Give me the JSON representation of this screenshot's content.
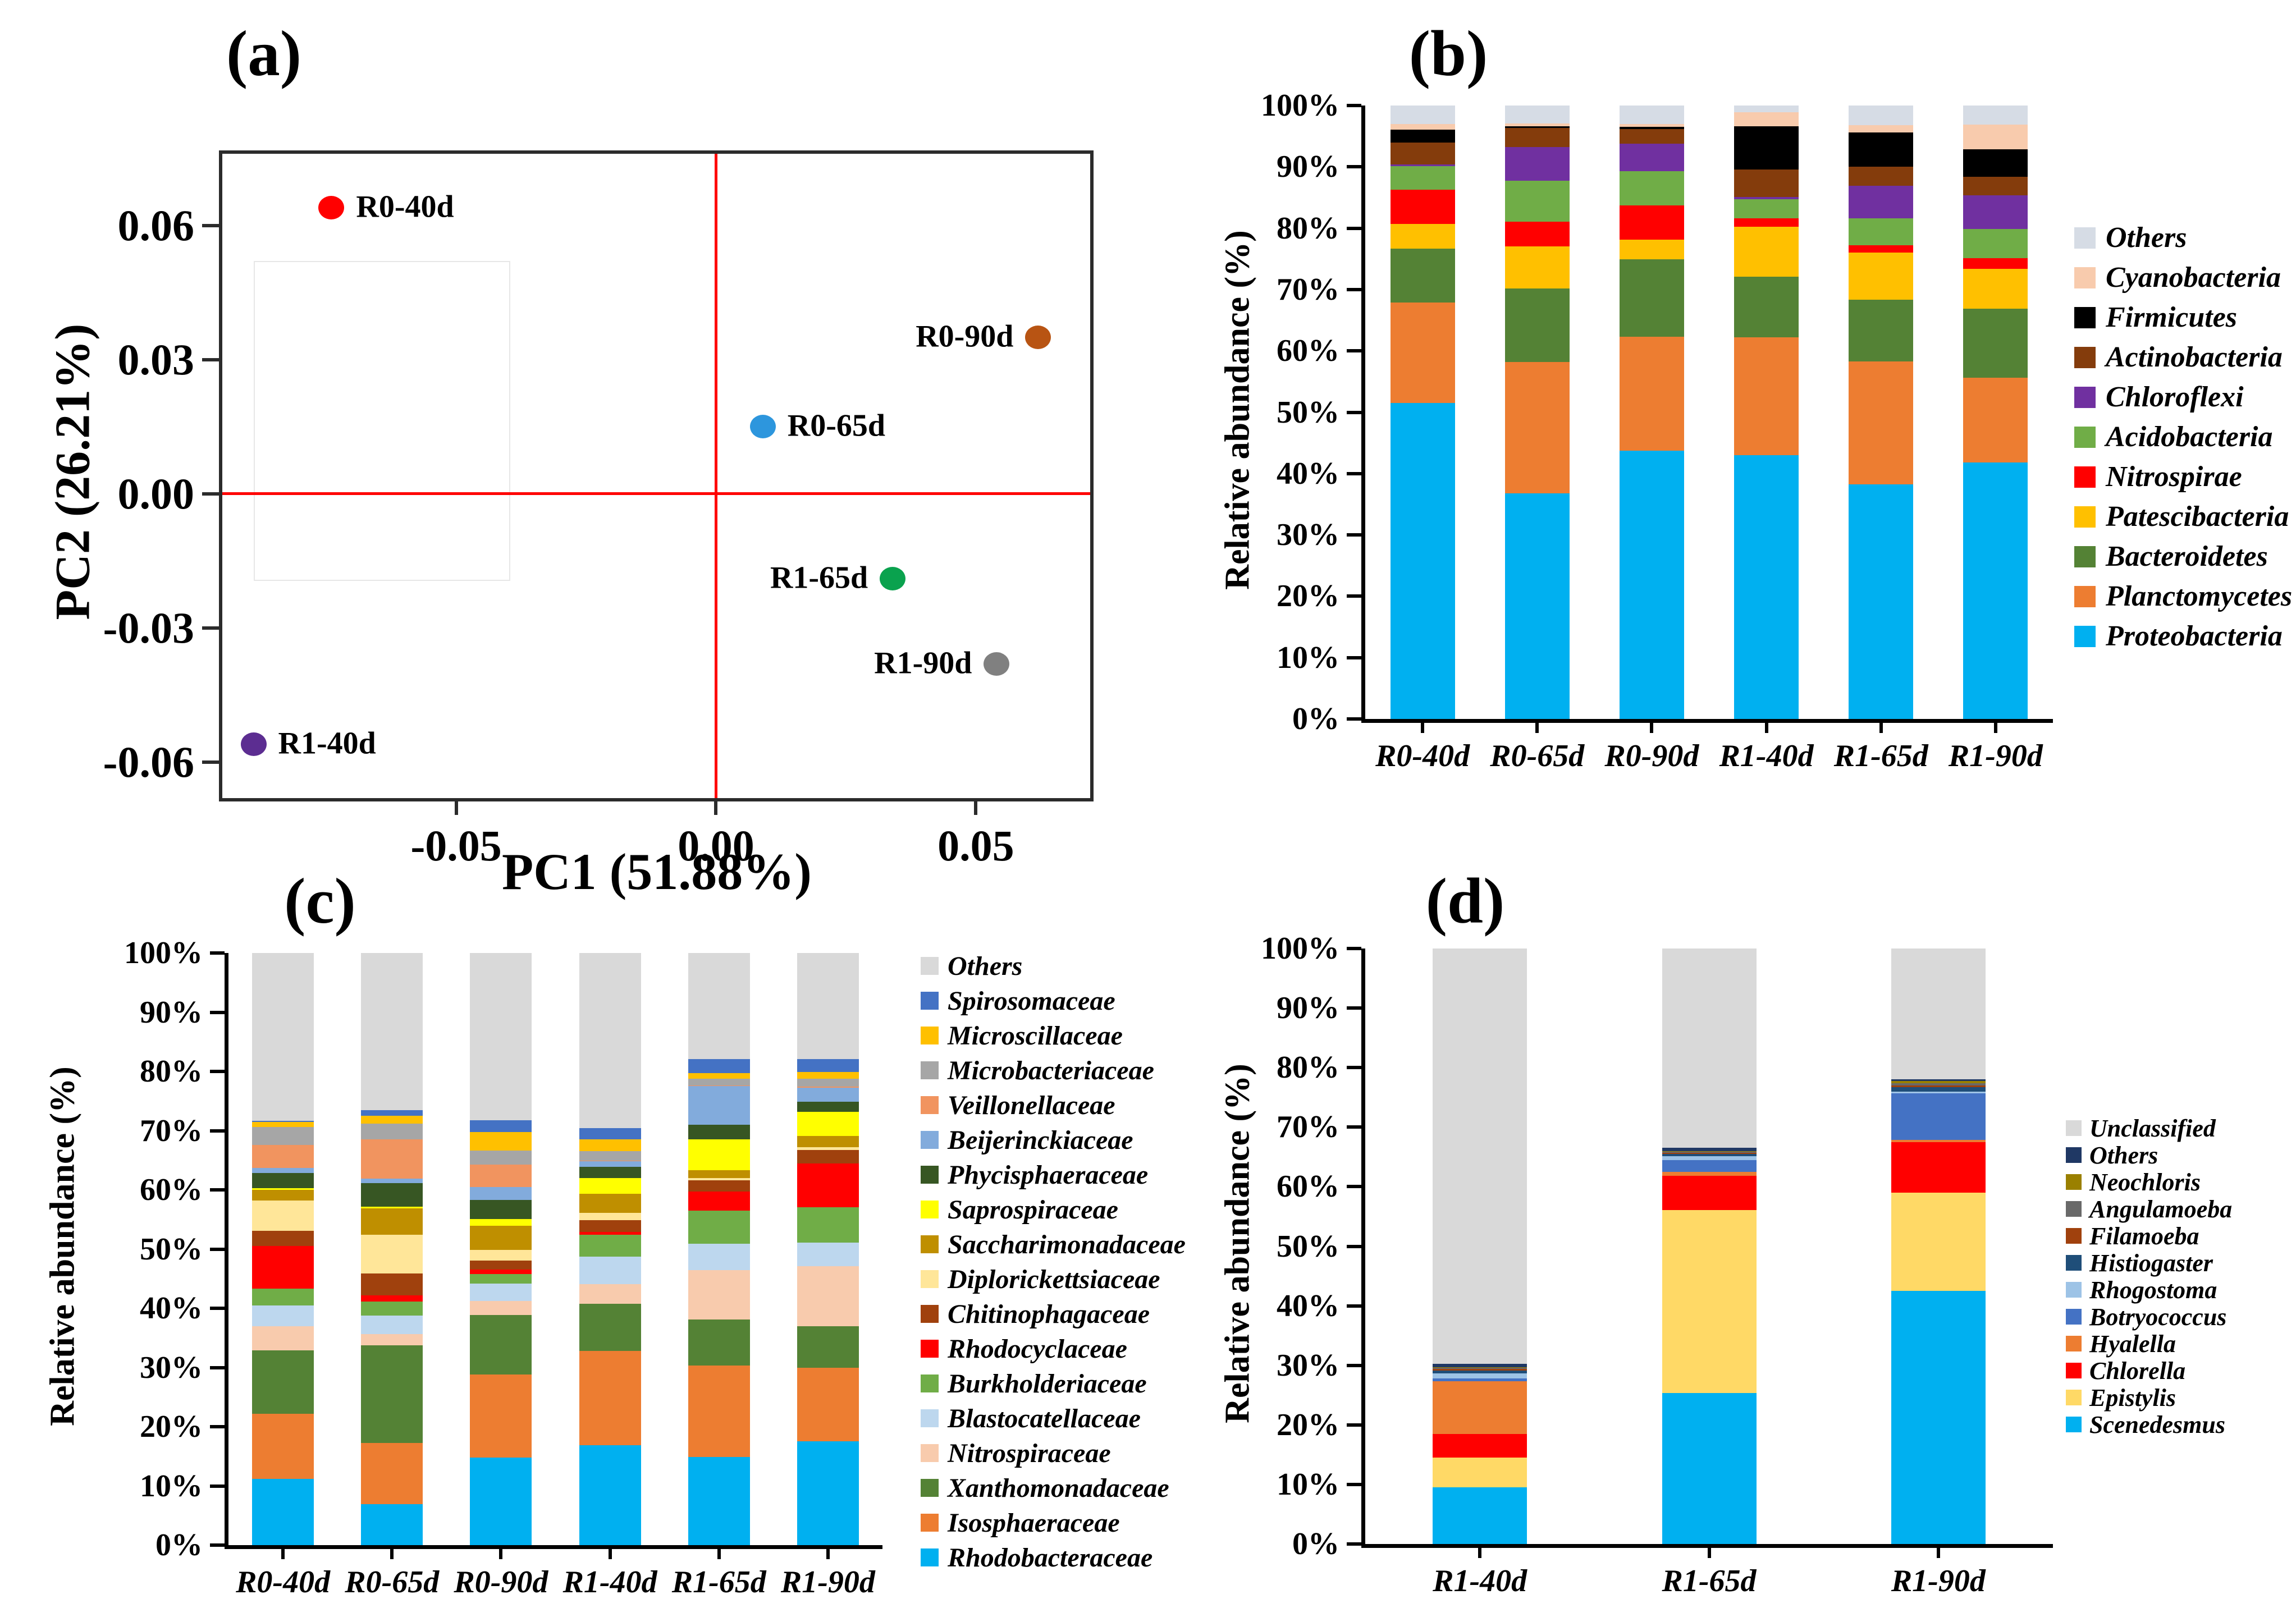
{
  "panels": {
    "a": {
      "title": "(a)",
      "xlabel": "PC1 (51.88%)",
      "ylabel": "PC2 (26.21%)",
      "chart_data": {
        "type": "scatter",
        "xlim": [
          -0.095,
          0.072
        ],
        "ylim": [
          -0.068,
          0.076
        ],
        "grid": false,
        "crosshair_color": "#FF0000",
        "xticks": [
          {
            "v": -0.05,
            "label": "-0.05"
          },
          {
            "v": 0.0,
            "label": "0.00"
          },
          {
            "v": 0.05,
            "label": "0.05"
          }
        ],
        "yticks": [
          {
            "v": 0.06,
            "label": "0.06"
          },
          {
            "v": 0.03,
            "label": "0.03"
          },
          {
            "v": 0.0,
            "label": "0.00"
          },
          {
            "v": -0.03,
            "label": "-0.03"
          },
          {
            "v": -0.06,
            "label": "-0.06"
          }
        ],
        "inset_box": {
          "x1": -0.089,
          "x2": -0.04,
          "y1": -0.019,
          "y2": 0.052
        },
        "points": [
          {
            "label": "R0-40d",
            "x": -0.074,
            "y": 0.064,
            "color": "#FF0000",
            "label_side": "right"
          },
          {
            "label": "R0-90d",
            "x": 0.062,
            "y": 0.035,
            "color": "#B85413",
            "label_side": "left"
          },
          {
            "label": "R0-65d",
            "x": 0.009,
            "y": 0.015,
            "color": "#2D96DD",
            "label_side": "right"
          },
          {
            "label": "R1-65d",
            "x": 0.034,
            "y": -0.019,
            "color": "#0AA24E",
            "label_side": "left"
          },
          {
            "label": "R1-90d",
            "x": 0.054,
            "y": -0.038,
            "color": "#808080",
            "label_side": "left"
          },
          {
            "label": "R1-40d",
            "x": -0.089,
            "y": -0.056,
            "color": "#5C2D91",
            "label_side": "right"
          }
        ]
      }
    },
    "b": {
      "title": "(b)",
      "chart_data": {
        "type": "bar-stacked",
        "ylabel": "Relative abundance (%)",
        "ylim": [
          0,
          100
        ],
        "yticks": [
          "0%",
          "10%",
          "20%",
          "30%",
          "40%",
          "50%",
          "60%",
          "70%",
          "80%",
          "90%",
          "100%"
        ],
        "legend_position": "right, top series first",
        "categories": [
          "R0-40d",
          "R0-65d",
          "R0-90d",
          "R1-40d",
          "R1-65d",
          "R1-90d"
        ],
        "series": [
          {
            "name": "Proteobacteria",
            "color": "#00B0F0",
            "values": [
              51.5,
              36.8,
              43.7,
              43.0,
              38.2,
              41.8
            ]
          },
          {
            "name": "Planctomycetes",
            "color": "#ED7D31",
            "values": [
              16.4,
              21.4,
              18.6,
              19.2,
              20.1,
              13.8
            ]
          },
          {
            "name": "Bacteroidetes",
            "color": "#548235",
            "values": [
              8.8,
              12.0,
              12.6,
              9.9,
              10.0,
              11.3
            ]
          },
          {
            "name": "Patescibacteria",
            "color": "#FFC000",
            "values": [
              4.0,
              6.8,
              3.2,
              8.1,
              7.7,
              6.5
            ]
          },
          {
            "name": "Nitrospirae",
            "color": "#FF0000",
            "values": [
              5.6,
              4.1,
              5.6,
              1.4,
              1.2,
              1.7
            ]
          },
          {
            "name": "Acidobacteria",
            "color": "#70AD47",
            "values": [
              3.8,
              6.6,
              5.6,
              3.1,
              4.4,
              4.8
            ]
          },
          {
            "name": "Chloroflexi",
            "color": "#7030A0",
            "values": [
              0.3,
              5.5,
              4.5,
              0.4,
              5.3,
              5.5
            ]
          },
          {
            "name": "Actinobacteria",
            "color": "#843C0C",
            "values": [
              3.6,
              3.1,
              2.4,
              4.5,
              3.1,
              3.0
            ]
          },
          {
            "name": "Firmicutes",
            "color": "#000000",
            "values": [
              2.1,
              0.3,
              0.3,
              7.0,
              5.6,
              4.5
            ]
          },
          {
            "name": "Cyanobacteria",
            "color": "#F8CBAD",
            "values": [
              0.9,
              0.5,
              0.5,
              2.3,
              1.2,
              4.0
            ]
          },
          {
            "name": "Others",
            "color": "#D6DCE5",
            "values": [
              3.0,
              2.9,
              3.0,
              1.1,
              3.2,
              3.1
            ]
          }
        ]
      }
    },
    "c": {
      "title": "(c)",
      "chart_data": {
        "type": "bar-stacked",
        "ylabel": "Relative abundance (%)",
        "ylim": [
          0,
          100
        ],
        "yticks": [
          "0%",
          "10%",
          "20%",
          "30%",
          "40%",
          "50%",
          "60%",
          "70%",
          "80%",
          "90%",
          "100%"
        ],
        "legend_position": "right, top series first",
        "categories": [
          "R0-40d",
          "R0-65d",
          "R0-90d",
          "R1-40d",
          "R1-65d",
          "R1-90d"
        ],
        "series": [
          {
            "name": "Rhodobacteraceae",
            "color": "#00B0F0",
            "values": [
              11.2,
              6.9,
              14.8,
              16.9,
              14.9,
              17.5
            ]
          },
          {
            "name": "Isosphaeraceae",
            "color": "#ED7D31",
            "values": [
              11.0,
              10.4,
              14.0,
              15.9,
              15.4,
              12.5
            ]
          },
          {
            "name": "Xanthomonadaceae",
            "color": "#548235",
            "values": [
              10.7,
              16.4,
              10.1,
              8.0,
              7.8,
              7.0
            ]
          },
          {
            "name": "Nitrospiraceae",
            "color": "#F8CBAD",
            "values": [
              4.1,
              1.9,
              2.3,
              3.3,
              8.3,
              10.1
            ]
          },
          {
            "name": "Blastocatellaceae",
            "color": "#BDD7EE",
            "values": [
              3.5,
              3.2,
              3.0,
              4.6,
              4.5,
              4.0
            ]
          },
          {
            "name": "Burkholderiaceae",
            "color": "#70AD47",
            "values": [
              2.8,
              2.3,
              1.6,
              3.7,
              5.6,
              6.0
            ]
          },
          {
            "name": "Rhodocyclaceae",
            "color": "#FF0000",
            "values": [
              7.2,
              1.1,
              0.7,
              0.5,
              3.2,
              7.4
            ]
          },
          {
            "name": "Chitinophagaceae",
            "color": "#A0410D",
            "values": [
              2.6,
              3.7,
              1.6,
              2.0,
              1.9,
              2.2
            ]
          },
          {
            "name": "Diplorickettsiaceae",
            "color": "#FFE699",
            "values": [
              5.1,
              6.5,
              1.8,
              1.2,
              0.4,
              0.5
            ]
          },
          {
            "name": "Saccharimonadaceae",
            "color": "#BF8F00",
            "values": [
              1.8,
              4.5,
              4.0,
              3.2,
              1.3,
              1.9
            ]
          },
          {
            "name": "Saprospiraceae",
            "color": "#FFFF00",
            "values": [
              0.3,
              0.3,
              1.2,
              2.7,
              5.2,
              4.1
            ]
          },
          {
            "name": "Phycisphaeraceae",
            "color": "#375623",
            "values": [
              2.5,
              3.9,
              3.2,
              1.9,
              2.5,
              1.7
            ]
          },
          {
            "name": "Beijerinckiaceae",
            "color": "#82ABDC",
            "values": [
              0.9,
              0.8,
              2.2,
              0.9,
              6.5,
              2.4
            ]
          },
          {
            "name": "Veillonellaceae",
            "color": "#F1945F",
            "values": [
              3.9,
              6.6,
              3.8,
              0.1,
              0.1,
              0.1
            ]
          },
          {
            "name": "Microbacteriaceae",
            "color": "#A6A6A6",
            "values": [
              3.0,
              2.7,
              2.3,
              1.6,
              1.2,
              1.4
            ]
          },
          {
            "name": "Microscillaceae",
            "color": "#FFC000",
            "values": [
              0.9,
              1.3,
              3.2,
              2.0,
              0.9,
              1.1
            ]
          },
          {
            "name": "Spirosomaceae",
            "color": "#4472C4",
            "values": [
              0.2,
              1.0,
              2.0,
              1.9,
              2.4,
              2.2
            ]
          },
          {
            "name": "Others",
            "color": "#D9D9D9",
            "values": [
              28.3,
              26.5,
              28.2,
              29.6,
              17.9,
              17.9
            ]
          }
        ]
      }
    },
    "d": {
      "title": "(d)",
      "chart_data": {
        "type": "bar-stacked",
        "ylabel": "Relative abundance (%)",
        "ylim": [
          0,
          100
        ],
        "yticks": [
          "0%",
          "10%",
          "20%",
          "30%",
          "40%",
          "50%",
          "60%",
          "70%",
          "80%",
          "90%",
          "100%"
        ],
        "legend_position": "right, top series first",
        "categories": [
          "R1-40d",
          "R1-65d",
          "R1-90d"
        ],
        "series": [
          {
            "name": "Scenedesmus",
            "color": "#00B0F0",
            "values": [
              9.5,
              25.4,
              42.5
            ]
          },
          {
            "name": "Epistylis",
            "color": "#FFD966",
            "values": [
              5.0,
              30.7,
              16.5
            ]
          },
          {
            "name": "Chlorella",
            "color": "#FF0000",
            "values": [
              4.0,
              5.7,
              8.5
            ]
          },
          {
            "name": "Hyalella",
            "color": "#ED7D31",
            "values": [
              8.8,
              0.7,
              0.4
            ]
          },
          {
            "name": "Botryococcus",
            "color": "#4472C4",
            "values": [
              0.5,
              2.0,
              7.8
            ]
          },
          {
            "name": "Rhogostoma",
            "color": "#9DC3E6",
            "values": [
              0.9,
              0.6,
              0.3
            ]
          },
          {
            "name": "Histiogaster",
            "color": "#1F4E79",
            "values": [
              0.4,
              0.4,
              0.7
            ]
          },
          {
            "name": "Filamoeba",
            "color": "#A0410D",
            "values": [
              0.3,
              0.2,
              0.3
            ]
          },
          {
            "name": "Angulamoeba",
            "color": "#696969",
            "values": [
              0.2,
              0.2,
              0.4
            ]
          },
          {
            "name": "Neochloris",
            "color": "#9A8000",
            "values": [
              0.1,
              0.1,
              0.4
            ]
          },
          {
            "name": "Others",
            "color": "#1F3864",
            "values": [
              0.6,
              0.5,
              0.2
            ]
          },
          {
            "name": "Unclassified",
            "color": "#D9D9D9",
            "values": [
              69.7,
              33.5,
              22.0
            ]
          }
        ]
      }
    }
  }
}
